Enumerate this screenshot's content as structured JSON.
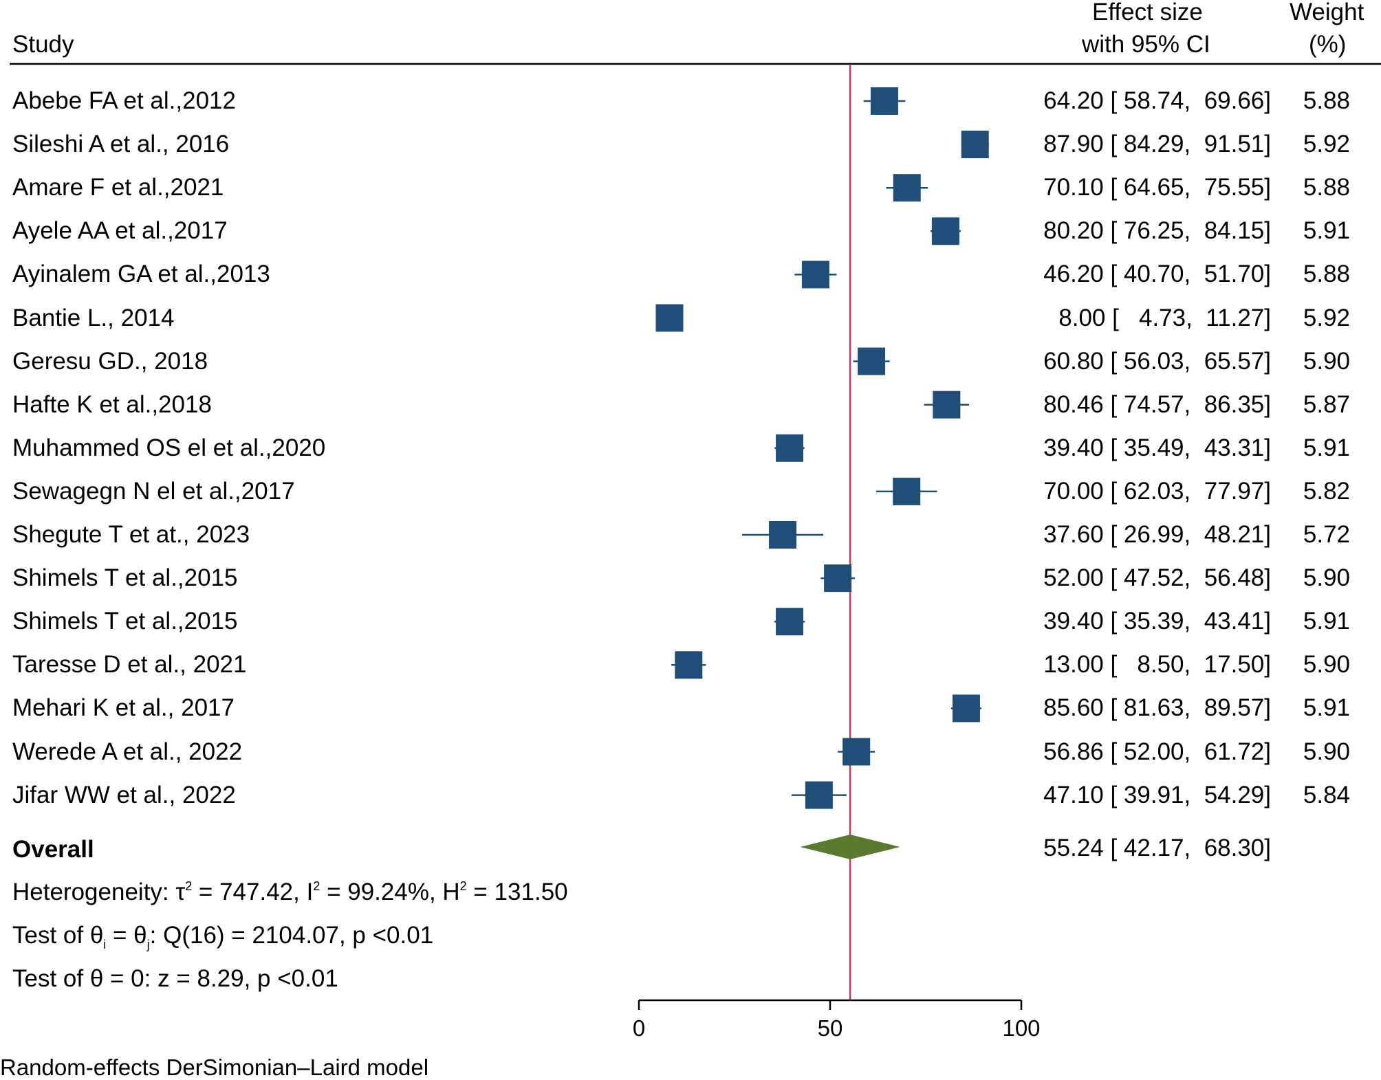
{
  "header": {
    "study": "Study",
    "effect_line1": "Effect size",
    "effect_line2": "with 95% CI",
    "weight_line1": "Weight",
    "weight_line2": "(%)"
  },
  "chart_data": {
    "type": "forest",
    "xlim": [
      0,
      100
    ],
    "xticks": [
      0,
      50,
      100
    ],
    "reference_line": 55.24,
    "colors": {
      "study_marker": "#1f4e79",
      "overall_diamond": "#5a7a2e",
      "reference_line": "#c0395a"
    },
    "studies": [
      {
        "name": "Abebe FA et al.,2012",
        "es": 64.2,
        "lo": 58.74,
        "hi": 69.66,
        "ci_text": "64.20 [ 58.74,  69.66]",
        "weight": "5.88"
      },
      {
        "name": "Sileshi A et al., 2016",
        "es": 87.9,
        "lo": 84.29,
        "hi": 91.51,
        "ci_text": "87.90 [ 84.29,  91.51]",
        "weight": "5.92"
      },
      {
        "name": "Amare F et al.,2021",
        "es": 70.1,
        "lo": 64.65,
        "hi": 75.55,
        "ci_text": "70.10 [ 64.65,  75.55]",
        "weight": "5.88"
      },
      {
        "name": "Ayele AA et al.,2017",
        "es": 80.2,
        "lo": 76.25,
        "hi": 84.15,
        "ci_text": "80.20 [ 76.25,  84.15]",
        "weight": "5.91"
      },
      {
        "name": "Ayinalem GA et al.,2013",
        "es": 46.2,
        "lo": 40.7,
        "hi": 51.7,
        "ci_text": "46.20 [ 40.70,  51.70]",
        "weight": "5.88"
      },
      {
        "name": "Bantie L., 2014",
        "es": 8.0,
        "lo": 4.73,
        "hi": 11.27,
        "ci_text": "8.00 [   4.73,  11.27]",
        "weight": "5.92"
      },
      {
        "name": "Geresu GD., 2018",
        "es": 60.8,
        "lo": 56.03,
        "hi": 65.57,
        "ci_text": "60.80 [ 56.03,  65.57]",
        "weight": "5.90"
      },
      {
        "name": "Hafte K et al.,2018",
        "es": 80.46,
        "lo": 74.57,
        "hi": 86.35,
        "ci_text": "80.46 [ 74.57,  86.35]",
        "weight": "5.87"
      },
      {
        "name": "Muhammed OS el et al.,2020",
        "es": 39.4,
        "lo": 35.49,
        "hi": 43.31,
        "ci_text": "39.40 [ 35.49,  43.31]",
        "weight": "5.91"
      },
      {
        "name": "Sewagegn N el et al.,2017",
        "es": 70.0,
        "lo": 62.03,
        "hi": 77.97,
        "ci_text": "70.00 [ 62.03,  77.97]",
        "weight": "5.82"
      },
      {
        "name": "Shegute T et at., 2023",
        "es": 37.6,
        "lo": 26.99,
        "hi": 48.21,
        "ci_text": "37.60 [ 26.99,  48.21]",
        "weight": "5.72"
      },
      {
        "name": "Shimels T et al.,2015",
        "es": 52.0,
        "lo": 47.52,
        "hi": 56.48,
        "ci_text": "52.00 [ 47.52,  56.48]",
        "weight": "5.90"
      },
      {
        "name": "Shimels T et al.,2015",
        "es": 39.4,
        "lo": 35.39,
        "hi": 43.41,
        "ci_text": "39.40 [ 35.39,  43.41]",
        "weight": "5.91"
      },
      {
        "name": "Taresse D et al., 2021",
        "es": 13.0,
        "lo": 8.5,
        "hi": 17.5,
        "ci_text": "13.00 [   8.50,  17.50]",
        "weight": "5.90"
      },
      {
        "name": "Mehari K et al., 2017",
        "es": 85.6,
        "lo": 81.63,
        "hi": 89.57,
        "ci_text": "85.60 [ 81.63,  89.57]",
        "weight": "5.91"
      },
      {
        "name": "Werede A et al., 2022",
        "es": 56.86,
        "lo": 52.0,
        "hi": 61.72,
        "ci_text": "56.86 [ 52.00,  61.72]",
        "weight": "5.90"
      },
      {
        "name": "Jifar WW et al., 2022",
        "es": 47.1,
        "lo": 39.91,
        "hi": 54.29,
        "ci_text": "47.10 [ 39.91,  54.29]",
        "weight": "5.84"
      }
    ],
    "overall": {
      "label": "Overall",
      "es": 55.24,
      "lo": 42.17,
      "hi": 68.3,
      "ci_text": "55.24 [ 42.17,  68.30]"
    }
  },
  "stats": {
    "heterogeneity": {
      "prefix": "Heterogeneity: τ",
      "sup1": "2",
      "mid1": " = 747.42, I",
      "sup2": "2",
      "mid2": " = 99.24%, H",
      "sup3": "2",
      "end": " = 131.50"
    },
    "test_theta_i": {
      "prefix": "Test of θ",
      "sub1": "i",
      "mid": " = θ",
      "sub2": "j",
      "end": ": Q(16) = 2104.07, p <0.01"
    },
    "test_theta_0": "Test of θ = 0: z = 8.29, p <0.01"
  },
  "footer": "Random-effects DerSimonian–Laird model"
}
